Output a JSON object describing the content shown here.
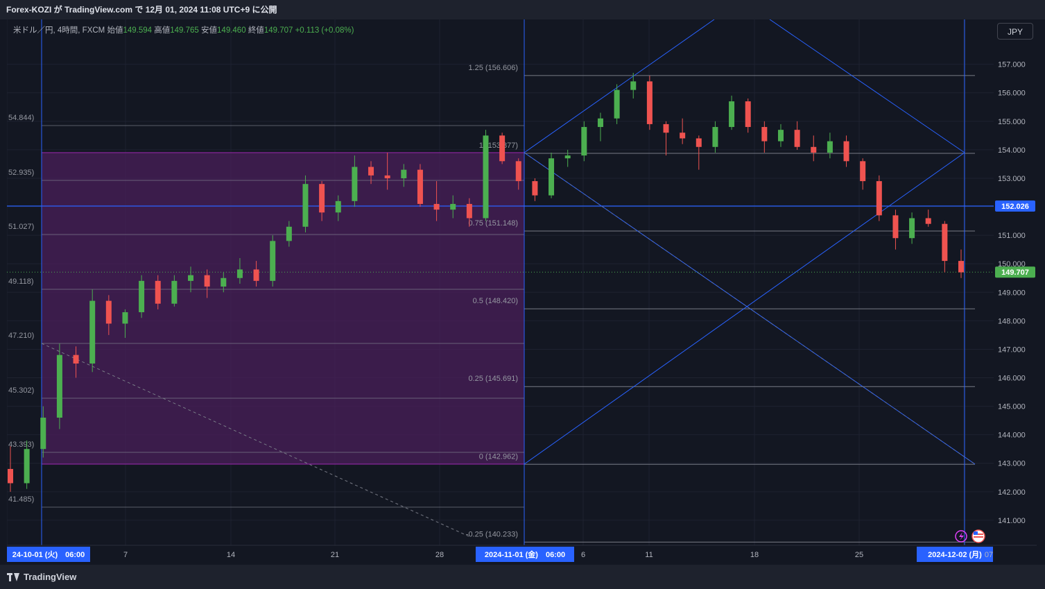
{
  "header": {
    "published": "Forex-KOZI が TradingView.com で 12月 01, 2024 11:08 UTC+9 に公開"
  },
  "legend": {
    "symbol": "米ドル／円, 4時間, FXCM",
    "open_label": "始値",
    "open": "149.594",
    "high_label": "高値",
    "high": "149.765",
    "low_label": "安値",
    "low": "149.460",
    "close_label": "終値",
    "close": "149.707",
    "change": "+0.113 (+0.08%)"
  },
  "currency_button": "JPY",
  "footer": {
    "brand": "TradingView"
  },
  "colors": {
    "bg": "#131722",
    "up": "#26a69a",
    "up_green": "#4caf50",
    "down": "#ef5350",
    "blue": "#2962ff",
    "fib_zone": "#4a1f5a",
    "fib_line": "#787b86"
  },
  "chart_data": {
    "type": "candlestick",
    "symbol": "USDJPY",
    "interval": "4h",
    "ylim": [
      140.25,
      157.85
    ],
    "y_ticks": [
      "157.000",
      "156.000",
      "155.000",
      "154.000",
      "153.000",
      "152.000",
      "151.000",
      "150.000",
      "149.000",
      "148.000",
      "147.000",
      "146.000",
      "145.000",
      "144.000",
      "143.000",
      "142.000",
      "141.000"
    ],
    "x_ticks": [
      "24-10-01 (火)　06:00",
      "7",
      "14",
      "21",
      "28",
      "2024-11-01 (金)　06:00",
      "6",
      "11",
      "18",
      "25",
      "2024-12-02 (月)",
      "07"
    ],
    "left_fib_labels": [
      "54.844)",
      "52.935)",
      "51.027)",
      "49.118)",
      "47.210)",
      "45.302)",
      "43.393)",
      "41.485)"
    ],
    "fib_levels": [
      {
        "label": "1.25 (156.606)",
        "value": 156.606
      },
      {
        "label": "1 (153.877)",
        "value": 153.877
      },
      {
        "label": "0.75 (151.148)",
        "value": 151.148
      },
      {
        "label": "0.5 (148.420)",
        "value": 148.42
      },
      {
        "label": "0.25 (145.691)",
        "value": 145.691
      },
      {
        "label": "0 (142.962)",
        "value": 142.962
      },
      {
        "label": "-0.25 (140.233)",
        "value": 140.233
      }
    ],
    "horizontal_line": {
      "value": 152.026,
      "label": "152.026"
    },
    "last_price": {
      "value": 149.707,
      "label": "149.707"
    },
    "candles_ohlc_sampled": [
      [
        142.8,
        143.6,
        142.0,
        142.3
      ],
      [
        142.3,
        143.8,
        142.1,
        143.5
      ],
      [
        143.5,
        145.0,
        143.2,
        144.6
      ],
      [
        144.6,
        147.2,
        144.2,
        146.8
      ],
      [
        146.8,
        147.1,
        146.0,
        146.5
      ],
      [
        146.5,
        149.1,
        146.2,
        148.7
      ],
      [
        148.7,
        148.9,
        147.5,
        147.9
      ],
      [
        147.9,
        148.4,
        147.4,
        148.3
      ],
      [
        148.3,
        149.6,
        148.1,
        149.4
      ],
      [
        149.4,
        149.6,
        148.4,
        148.6
      ],
      [
        148.6,
        149.6,
        148.5,
        149.4
      ],
      [
        149.4,
        149.9,
        149.0,
        149.6
      ],
      [
        149.6,
        149.8,
        148.8,
        149.2
      ],
      [
        149.2,
        149.7,
        149.0,
        149.5
      ],
      [
        149.5,
        150.2,
        149.3,
        149.8
      ],
      [
        149.8,
        150.1,
        149.2,
        149.4
      ],
      [
        149.4,
        151.0,
        149.2,
        150.8
      ],
      [
        150.8,
        151.5,
        150.6,
        151.3
      ],
      [
        151.3,
        153.1,
        151.1,
        152.8
      ],
      [
        152.8,
        152.9,
        151.5,
        151.8
      ],
      [
        151.8,
        152.4,
        151.5,
        152.2
      ],
      [
        152.2,
        153.8,
        152.0,
        153.4
      ],
      [
        153.4,
        153.6,
        152.8,
        153.1
      ],
      [
        153.1,
        153.9,
        152.6,
        153.0
      ],
      [
        153.0,
        153.5,
        152.7,
        153.3
      ],
      [
        153.3,
        153.5,
        152.0,
        152.1
      ],
      [
        152.1,
        152.9,
        151.5,
        151.9
      ],
      [
        151.9,
        152.4,
        151.6,
        152.1
      ],
      [
        152.1,
        152.3,
        151.3,
        151.6
      ],
      [
        151.6,
        154.7,
        151.5,
        154.5
      ],
      [
        154.5,
        154.6,
        153.5,
        153.6
      ],
      [
        153.6,
        153.7,
        152.6,
        152.9
      ],
      [
        152.9,
        153.0,
        152.2,
        152.4
      ],
      [
        152.4,
        153.9,
        152.3,
        153.7
      ],
      [
        153.7,
        154.0,
        153.4,
        153.8
      ],
      [
        153.8,
        155.0,
        153.6,
        154.8
      ],
      [
        154.8,
        155.3,
        154.3,
        155.1
      ],
      [
        155.1,
        156.3,
        154.9,
        156.1
      ],
      [
        156.1,
        156.7,
        155.8,
        156.4
      ],
      [
        156.4,
        156.6,
        154.7,
        154.9
      ],
      [
        154.9,
        155.0,
        153.8,
        154.6
      ],
      [
        154.6,
        155.1,
        154.2,
        154.4
      ],
      [
        154.4,
        154.5,
        153.3,
        154.1
      ],
      [
        154.1,
        155.0,
        153.9,
        154.8
      ],
      [
        154.8,
        155.9,
        154.7,
        155.7
      ],
      [
        155.7,
        155.8,
        154.6,
        154.8
      ],
      [
        154.8,
        155.0,
        153.9,
        154.3
      ],
      [
        154.3,
        154.9,
        154.1,
        154.7
      ],
      [
        154.7,
        155.0,
        154.0,
        154.1
      ],
      [
        154.1,
        154.5,
        153.6,
        153.9
      ],
      [
        153.9,
        154.6,
        153.7,
        154.3
      ],
      [
        154.3,
        154.5,
        153.4,
        153.6
      ],
      [
        153.6,
        153.7,
        152.6,
        152.9
      ],
      [
        152.9,
        153.1,
        151.5,
        151.7
      ],
      [
        151.7,
        151.9,
        150.5,
        150.9
      ],
      [
        150.9,
        151.8,
        150.7,
        151.6
      ],
      [
        151.6,
        151.9,
        151.3,
        151.4
      ],
      [
        151.4,
        151.5,
        149.7,
        150.1
      ],
      [
        150.1,
        150.5,
        149.5,
        149.7
      ]
    ]
  }
}
